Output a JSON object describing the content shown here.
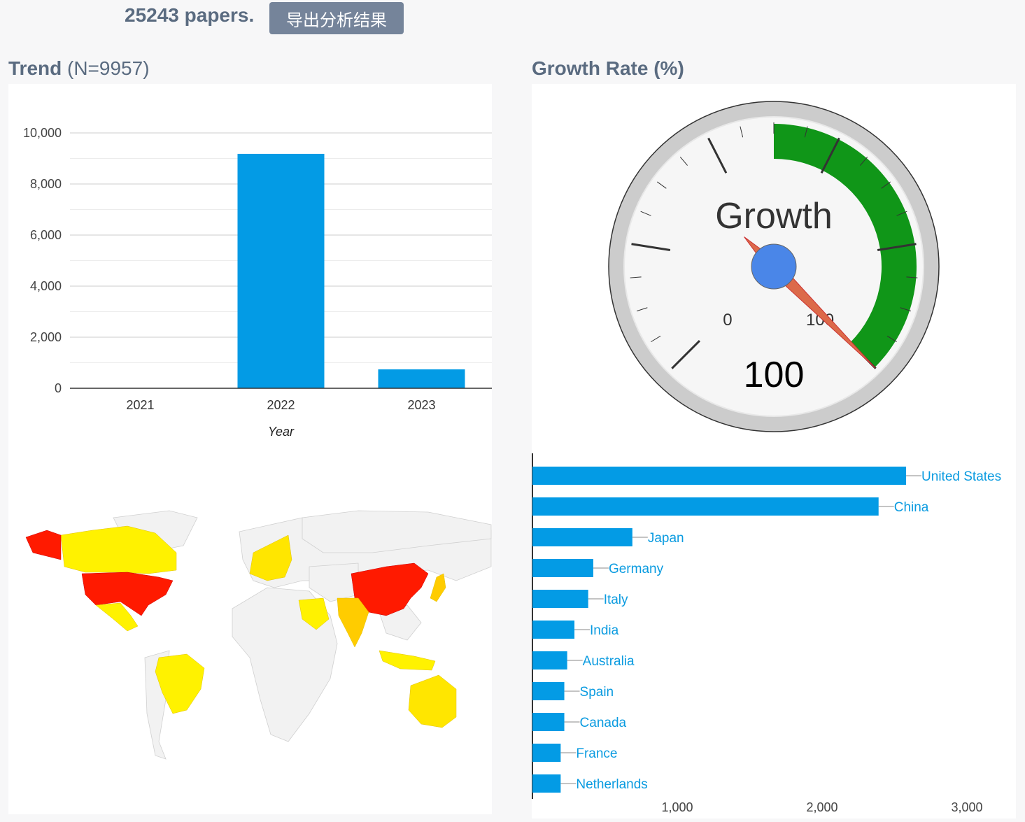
{
  "header": {
    "paper_count": "25243 papers.",
    "export_label": "导出分析结果"
  },
  "trend": {
    "title_bold": "Trend",
    "title_rest": "(N=9957)"
  },
  "growth": {
    "title": "Growth Rate (%)"
  },
  "colors": {
    "bar": "#039be5",
    "gauge_green": "#109618",
    "needle": "#dc6a4a",
    "hub": "#4a86e8",
    "map_high": "#ff1a00",
    "map_mid": "#ffcc00",
    "map_low": "#fff200",
    "map_none": "#f2f2f2"
  },
  "chart_data": [
    {
      "type": "bar",
      "categories": [
        "2021",
        "2022",
        "2023"
      ],
      "values": [
        0,
        9180,
        740
      ],
      "xlabel": "Year",
      "ylabel": "",
      "ylim": [
        0,
        10000
      ],
      "yticks": [
        0,
        2000,
        4000,
        6000,
        8000,
        10000
      ],
      "ytick_labels": [
        "0",
        "2,000",
        "4,000",
        "6,000",
        "8,000",
        "10,000"
      ],
      "grid": true
    },
    {
      "type": "gauge",
      "label": "Growth",
      "value": 100,
      "value_label": "100",
      "min": 0,
      "max": 100,
      "min_label": "0",
      "max_label": "100",
      "green_from": 0,
      "green_to": 100
    },
    {
      "type": "bar",
      "orientation": "horizontal",
      "categories": [
        "United States",
        "China",
        "Japan",
        "Germany",
        "Italy",
        "India",
        "Australia",
        "Spain",
        "Canada",
        "France",
        "Netherlands"
      ],
      "values": [
        2580,
        2390,
        690,
        420,
        385,
        290,
        240,
        220,
        220,
        195,
        195
      ],
      "xticks": [
        1000,
        2000,
        3000
      ],
      "xtick_labels": [
        "1,000",
        "2,000",
        "3,000"
      ]
    },
    {
      "type": "map",
      "regions": [
        {
          "name": "United States",
          "level": "high"
        },
        {
          "name": "China",
          "level": "high"
        },
        {
          "name": "Japan",
          "level": "mid"
        },
        {
          "name": "India",
          "level": "mid"
        },
        {
          "name": "Canada",
          "level": "low"
        },
        {
          "name": "Mexico",
          "level": "low"
        },
        {
          "name": "Brazil",
          "level": "low"
        },
        {
          "name": "Australia",
          "level": "low"
        },
        {
          "name": "Saudi Arabia",
          "level": "low"
        },
        {
          "name": "Indonesia",
          "level": "low"
        }
      ]
    }
  ]
}
